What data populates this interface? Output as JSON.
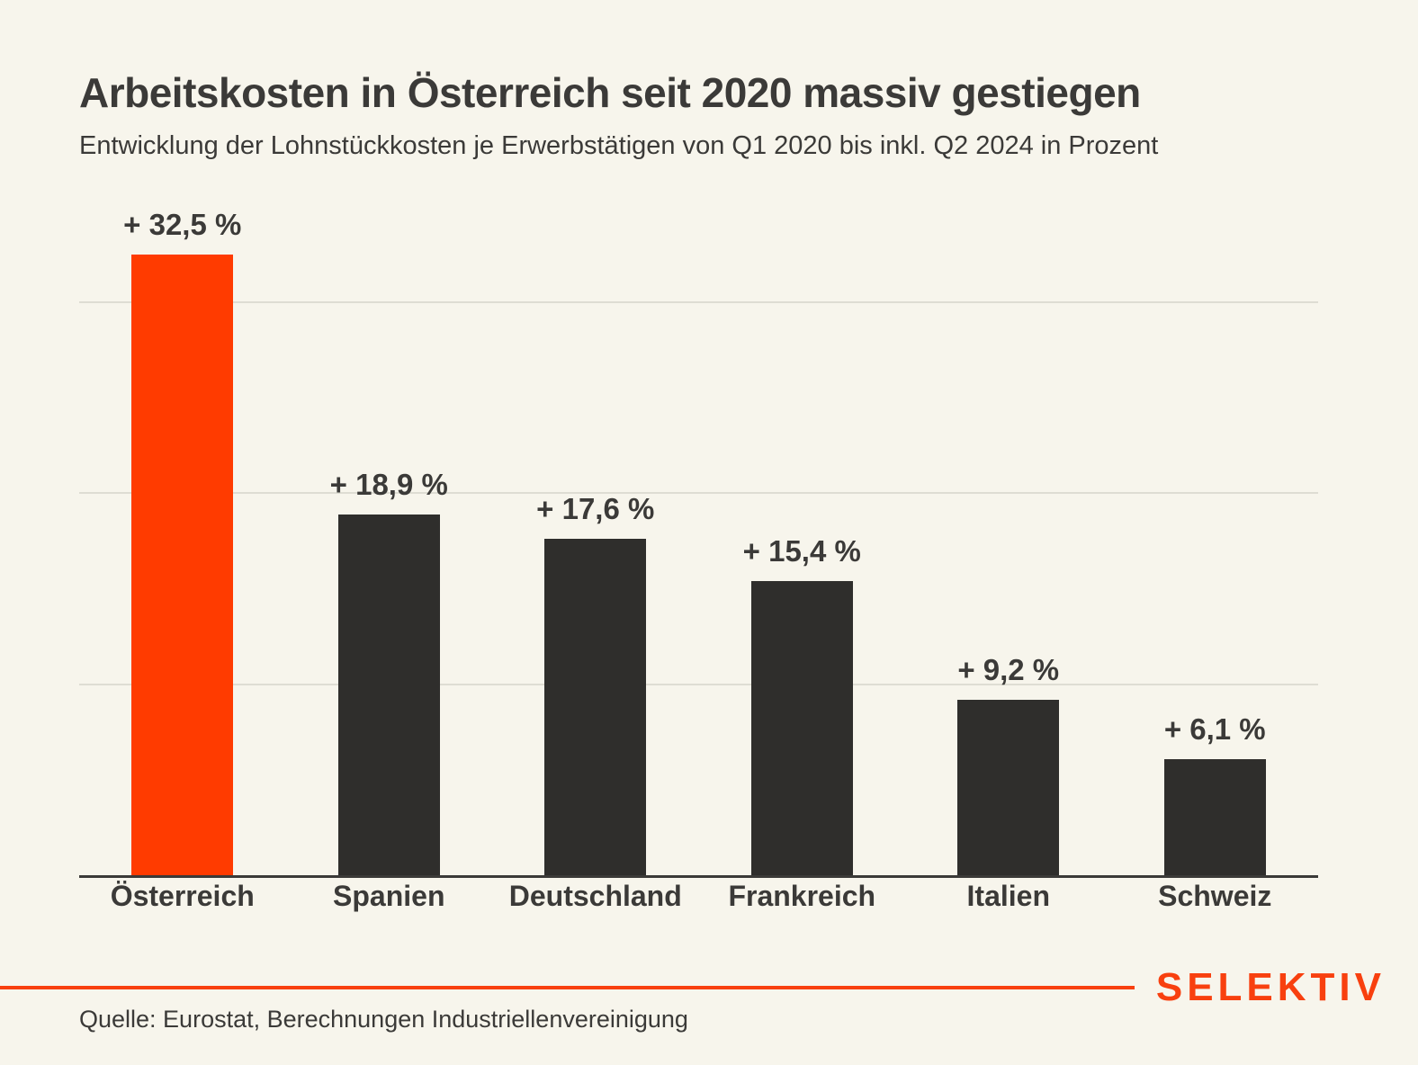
{
  "header": {
    "title": "Arbeitskosten in Österreich seit 2020 massiv gestiegen",
    "subtitle": "Entwicklung der Lohnstückkosten je Erwerbstätigen von Q1 2020 bis inkl. Q2 2024 in Prozent"
  },
  "chart_data": {
    "type": "bar",
    "title": "Arbeitskosten in Österreich seit 2020 massiv gestiegen",
    "subtitle": "Entwicklung der Lohnstückkosten je Erwerbstätigen von Q1 2020 bis inkl. Q2 2024 in Prozent",
    "categories": [
      "Österreich",
      "Spanien",
      "Deutschland",
      "Frankreich",
      "Italien",
      "Schweiz"
    ],
    "values": [
      32.5,
      18.9,
      17.6,
      15.4,
      9.2,
      6.1
    ],
    "value_labels": [
      "+ 32,5 %",
      "+ 18,9 %",
      "+ 17,6 %",
      "+ 15,4 %",
      "+ 9,2 %",
      "+ 6,1 %"
    ],
    "xlabel": "",
    "ylabel": "",
    "unit": "Prozent",
    "ylim": [
      0,
      35
    ],
    "grid": true,
    "gridline_values": [
      10,
      20,
      30
    ],
    "gridlines_labeled": false,
    "legend": false,
    "highlight_category": "Österreich",
    "bar_colors": {
      "highlight": "#FF3B00",
      "default": "#2F2E2C"
    }
  },
  "footer": {
    "logo": "SELEKTIV",
    "source": "Quelle: Eurostat, Berechnungen Industriellenvereinigung"
  },
  "colors": {
    "background": "#F7F5EC",
    "text": "#3B3A38",
    "accent": "#FF3B00",
    "bar_default": "#2F2E2C",
    "gridline": "#DEDDD3",
    "axis": "#3B3A38",
    "logo": "#F8400F"
  }
}
